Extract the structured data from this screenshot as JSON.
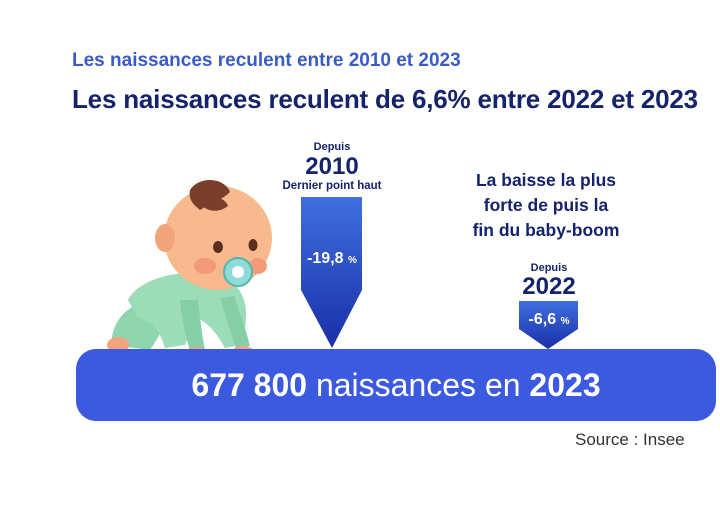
{
  "header": {
    "subtitle": "Les naissances reculent entre 2010 et 2023",
    "title": "Les naissances reculent de 6,6% entre 2022 et 2023"
  },
  "arrows": [
    {
      "since_label": "Depuis",
      "year": "2010",
      "note": "Dernier point haut",
      "value": "-19,8",
      "unit": "%",
      "change_percent": -19.8
    },
    {
      "since_label": "Depuis",
      "year": "2022",
      "note": "",
      "value": "-6,6",
      "unit": "%",
      "change_percent": -6.6
    }
  ],
  "callout": {
    "line1": "La baisse la plus",
    "line2": "forte de puis la",
    "line3": "fin du baby-boom"
  },
  "banner": {
    "number": "677 800",
    "middle": " naissances en ",
    "year": "2023"
  },
  "source": "Source : Insee",
  "colors": {
    "accent_blue": "#3b5ae0",
    "dark_navy": "#14236b",
    "subtitle_blue": "#3a5bc7",
    "arrow_top": "#3f6fe0",
    "arrow_bottom": "#1a2fa8"
  },
  "illustration": {
    "icon": "baby-crawling-with-pacifier"
  }
}
